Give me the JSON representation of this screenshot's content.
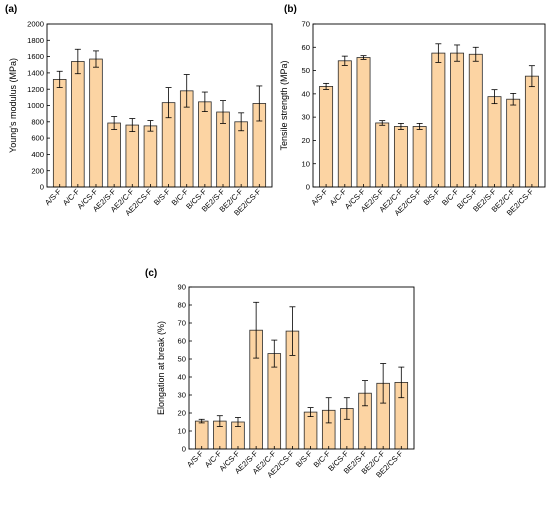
{
  "chart_data": [
    {
      "panel_label": "(a)",
      "type": "bar",
      "categories": [
        "A/S-F",
        "A/C-F",
        "A/CS-F",
        "AE2/S-F",
        "AE2/C-F",
        "AE2/CS-F",
        "B/S-F",
        "B/C-F",
        "B/CS-F",
        "BE2/S-F",
        "BE2/C-F",
        "BE2/CS-F"
      ],
      "values": [
        1320,
        1540,
        1570,
        785,
        760,
        750,
        1035,
        1180,
        1045,
        920,
        800,
        1025
      ],
      "errors": [
        100,
        150,
        100,
        80,
        80,
        65,
        185,
        200,
        120,
        140,
        110,
        215
      ],
      "ylabel": "Young's modulus (MPa)",
      "ylim": [
        0,
        2000
      ],
      "yticks": [
        0,
        200,
        400,
        600,
        800,
        1000,
        1200,
        1400,
        1600,
        1800,
        2000
      ]
    },
    {
      "panel_label": "(b)",
      "type": "bar",
      "categories": [
        "A/S-F",
        "A/C-F",
        "A/CS-F",
        "AE2/S-F",
        "AE2/C-F",
        "AE2/CS-F",
        "B/S-F",
        "B/C-F",
        "B/CS-F",
        "BE2/S-F",
        "BE2/C-F",
        "BE2/CS-F"
      ],
      "values": [
        43.2,
        54.2,
        55.6,
        27.5,
        26.0,
        26.0,
        57.5,
        57.5,
        57.0,
        38.8,
        37.7,
        47.6
      ],
      "errors": [
        1.3,
        2.0,
        0.8,
        1.0,
        1.3,
        1.3,
        4.0,
        3.5,
        3.0,
        3.0,
        2.5,
        4.5
      ],
      "ylabel": "Tensile strength (MPa)",
      "ylim": [
        0,
        70
      ],
      "yticks": [
        0,
        10,
        20,
        30,
        40,
        50,
        60,
        70
      ]
    },
    {
      "panel_label": "(c)",
      "type": "bar",
      "categories": [
        "A/S-F",
        "A/C-F",
        "A/CS-F",
        "AE2/S-F",
        "AE2/C-F",
        "AE2/CS-F",
        "B/S-F",
        "B/C-F",
        "B/CS-F",
        "BE2/S-F",
        "BE2/C-F",
        "BE2/CS-F"
      ],
      "values": [
        15.5,
        15.5,
        15.0,
        66.0,
        53.0,
        65.5,
        20.5,
        21.5,
        22.5,
        31.0,
        36.5,
        37.0
      ],
      "errors": [
        1.0,
        3.0,
        2.5,
        15.5,
        7.5,
        13.5,
        2.5,
        7.0,
        6.0,
        7.0,
        11.0,
        8.5
      ],
      "ylabel": "Elongation at break (%)",
      "ylim": [
        0,
        90
      ],
      "yticks": [
        0,
        10,
        20,
        30,
        40,
        50,
        60,
        70,
        80,
        90
      ]
    }
  ]
}
